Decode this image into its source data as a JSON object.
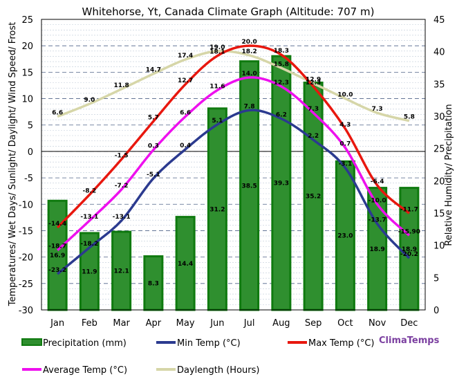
{
  "colors": {
    "precip_fill": "#2f8f2f",
    "precip_stroke": "#0f7a0f",
    "min": "#2b3a8f",
    "max": "#e8170e",
    "avg": "#ee10ee",
    "daylength": "#d6d6a8",
    "grid": "#8aa0b8",
    "brand": "#7b3fa0"
  },
  "chart_data": {
    "type": "bar+line",
    "title": "Whitehorse, Yt, Canada Climate Graph (Altitude: 707 m)",
    "ylabel_left": "Temperatures/ Wet Days/ Sunlight/ Daylight/ Wind Speed/ Frost",
    "ylabel_right": "Relative Humidity/ Precipitation",
    "ylim_left": [
      -30,
      25
    ],
    "ylim_right": [
      0,
      45
    ],
    "left_ticks": [
      "25",
      "20",
      "15",
      "10",
      "5",
      "0",
      "-5",
      "-10",
      "-15",
      "-20",
      "-25",
      "-30"
    ],
    "right_ticks": [
      "45",
      "40",
      "35",
      "30",
      "25",
      "20",
      "15",
      "10",
      "5",
      "0"
    ],
    "categories": [
      "Jan",
      "Feb",
      "Mar",
      "Apr",
      "May",
      "Jun",
      "Jul",
      "Aug",
      "Sep",
      "Oct",
      "Nov",
      "Dec"
    ],
    "series": [
      {
        "name": "Precipitation (mm)",
        "kind": "bar",
        "axis": "right",
        "values": [
          16.9,
          11.9,
          12.1,
          8.3,
          14.4,
          31.2,
          38.5,
          39.3,
          35.2,
          23.0,
          18.9,
          18.9
        ],
        "labels": [
          "16.9",
          "11.9",
          "12.1",
          "8.3",
          "14.4",
          "31.2",
          "38.5",
          "39.3",
          "35.2",
          "23.0",
          "18.9",
          "18.9"
        ]
      },
      {
        "name": "Daylength (Hours)",
        "kind": "line",
        "axis": "left",
        "values": [
          6.6,
          9.0,
          11.8,
          14.7,
          17.4,
          19.0,
          18.2,
          15.8,
          12.9,
          10.0,
          7.3,
          5.8
        ],
        "labels": [
          "6.6",
          "9.0",
          "11.8",
          "14.7",
          "17.4",
          "19.0",
          "18.2",
          "15.8",
          "12.9",
          "10.0",
          "7.3",
          "5.8"
        ]
      },
      {
        "name": "Min Temp (°C)",
        "kind": "line",
        "axis": "left",
        "values": [
          -23.2,
          -18.2,
          -13.1,
          -5.1,
          0.4,
          5.1,
          7.8,
          6.2,
          2.2,
          -3.1,
          -13.7,
          -20.2
        ],
        "labels": [
          "-23.2",
          "-18.2",
          "-13.1",
          "-5.1",
          "0.4",
          "5.1",
          "7.8",
          "6.2",
          "2.2",
          "-3.1",
          "-13.7",
          "-20.2"
        ]
      },
      {
        "name": "Average Temp (°C)",
        "kind": "line",
        "axis": "left",
        "values": [
          -18.7,
          -13.1,
          -7.2,
          0.3,
          6.6,
          11.6,
          14.0,
          12.3,
          7.3,
          0.7,
          -10.0,
          -15.9
        ],
        "labels": [
          "-18.7",
          "-13.1",
          "-7.2",
          "0.3",
          "6.6",
          "11.6",
          "14.0",
          "12.3",
          "7.3",
          "0.7",
          "-10.0",
          "-15.90"
        ]
      },
      {
        "name": "Max Temp (°C)",
        "kind": "line",
        "axis": "left",
        "values": [
          -14.4,
          -8.2,
          -1.5,
          5.7,
          12.7,
          18.1,
          20.0,
          18.3,
          12.3,
          4.3,
          -6.4,
          -11.7
        ],
        "labels": [
          "-14.4",
          "-8.2",
          "-1.5",
          "5.7",
          "12.7",
          "18.1",
          "20.0",
          "18.3",
          "12.3",
          "4.3",
          "-6.4",
          "-11.7"
        ]
      }
    ],
    "legend": {
      "position": "bottom",
      "items": [
        {
          "label": "Precipitation (mm)",
          "kind": "bar",
          "color_key": "precip_fill"
        },
        {
          "label": "Min Temp (°C)",
          "kind": "line",
          "color_key": "min"
        },
        {
          "label": "Max Temp (°C)",
          "kind": "line",
          "color_key": "max"
        },
        {
          "label": "Average Temp (°C)",
          "kind": "line",
          "color_key": "avg"
        },
        {
          "label": "Daylength (Hours)",
          "kind": "line",
          "color_key": "daylength"
        }
      ]
    },
    "brand": "ClimaTemps"
  }
}
